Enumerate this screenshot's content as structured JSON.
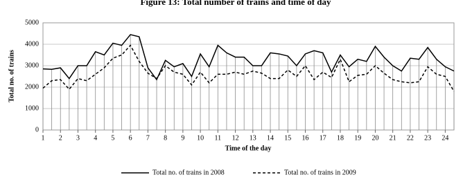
{
  "chart_data": {
    "type": "line",
    "title": "Figure 13: Total number of trains and time of day",
    "x_label": "Time of the day",
    "y_label": "Total no. of trains",
    "x": [
      1,
      1.5,
      2,
      2.5,
      3,
      3.5,
      4,
      4.5,
      5,
      5.5,
      6,
      6.5,
      7,
      7.5,
      8,
      8.5,
      9,
      9.5,
      10,
      10.5,
      11,
      11.5,
      12,
      12.5,
      13,
      13.5,
      14,
      14.5,
      15,
      15.5,
      16,
      16.5,
      17,
      17.5,
      18,
      18.5,
      19,
      19.5,
      20,
      20.5,
      21,
      21.5,
      22,
      22.5,
      23,
      23.5,
      24,
      24.5
    ],
    "series": [
      {
        "name": "Total no. of trains in 2008",
        "color": "#000000",
        "line_style": "solid",
        "drop_lines": true,
        "values": [
          2850,
          2830,
          2900,
          2400,
          3000,
          3000,
          3650,
          3500,
          4050,
          3950,
          4450,
          4350,
          2900,
          2350,
          3250,
          2950,
          3100,
          2500,
          3550,
          2950,
          3950,
          3600,
          3400,
          3400,
          3000,
          3000,
          3600,
          3550,
          3450,
          3000,
          3550,
          3700,
          3600,
          2700,
          3500,
          2950,
          3300,
          3200,
          3900,
          3400,
          3000,
          2750,
          3350,
          3300,
          3850,
          3300,
          2950,
          2750
        ]
      },
      {
        "name": "Total no. of trains in 2009",
        "color": "#000000",
        "line_style": "dashed",
        "drop_lines": false,
        "values": [
          1950,
          2300,
          2350,
          1900,
          2400,
          2300,
          2600,
          2900,
          3350,
          3500,
          3950,
          3200,
          2650,
          2400,
          3000,
          2700,
          2600,
          2100,
          2700,
          2200,
          2600,
          2600,
          2700,
          2600,
          2750,
          2650,
          2400,
          2400,
          2800,
          2500,
          3000,
          2350,
          2700,
          2450,
          3300,
          2250,
          2550,
          2600,
          3000,
          2650,
          2350,
          2250,
          2200,
          2250,
          2950,
          2600,
          2500,
          1800
        ]
      }
    ],
    "xlim": [
      1,
      24.5
    ],
    "xticks": [
      1,
      2,
      3,
      4,
      5,
      6,
      7,
      8,
      9,
      10,
      11,
      12,
      13,
      14,
      15,
      16,
      17,
      18,
      19,
      20,
      21,
      22,
      23,
      24
    ],
    "ylim": [
      0,
      5000
    ],
    "yticks": [
      0,
      1000,
      2000,
      3000,
      4000,
      5000
    ],
    "grid": true,
    "legend": "bottom"
  }
}
